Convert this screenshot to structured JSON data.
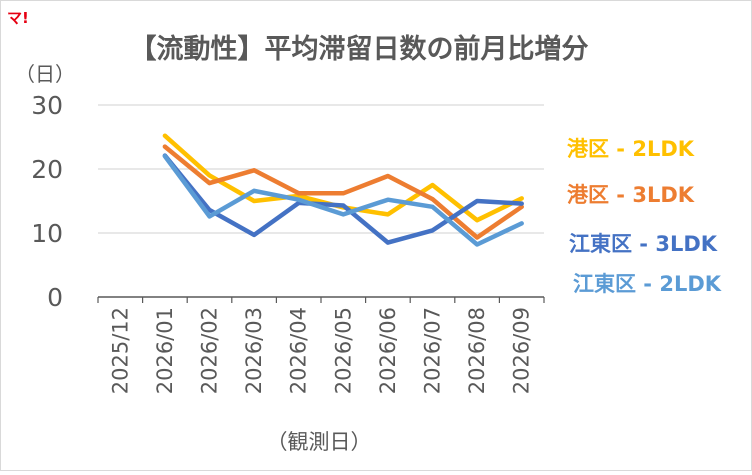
{
  "logo": "マ!",
  "chart_data": {
    "type": "line",
    "title": "【流動性】平均滞留日数の前月比増分",
    "ylabel": "（日）",
    "xlabel": "（観測日）",
    "ylim": [
      0,
      30
    ],
    "yticks": [
      0,
      10,
      20,
      30
    ],
    "grid": true,
    "legend_position": "right",
    "categories": [
      "2025/12",
      "2026/01",
      "2026/02",
      "2026/03",
      "2026/04",
      "2026/05",
      "2026/06",
      "2026/07",
      "2026/08",
      "2026/09"
    ],
    "series": [
      {
        "name": "港区 - 2LDK",
        "color": "#FFC000",
        "values": [
          null,
          25.2,
          19.0,
          15.0,
          15.8,
          14.0,
          12.9,
          17.5,
          12.0,
          15.4
        ]
      },
      {
        "name": "港区 - 3LDK",
        "color": "#ED7D31",
        "values": [
          null,
          23.5,
          17.8,
          19.8,
          16.2,
          16.2,
          18.9,
          15.3,
          9.3,
          14.1
        ]
      },
      {
        "name": "江東区 - 3LDK",
        "color": "#4472C4",
        "values": [
          null,
          22.1,
          13.6,
          9.7,
          14.7,
          14.3,
          8.5,
          10.4,
          15.0,
          14.6
        ]
      },
      {
        "name": "江東区 - 2LDK",
        "color": "#5B9BD5",
        "values": [
          null,
          22.0,
          12.6,
          16.6,
          15.2,
          12.9,
          15.2,
          14.1,
          8.2,
          11.5
        ]
      }
    ]
  }
}
